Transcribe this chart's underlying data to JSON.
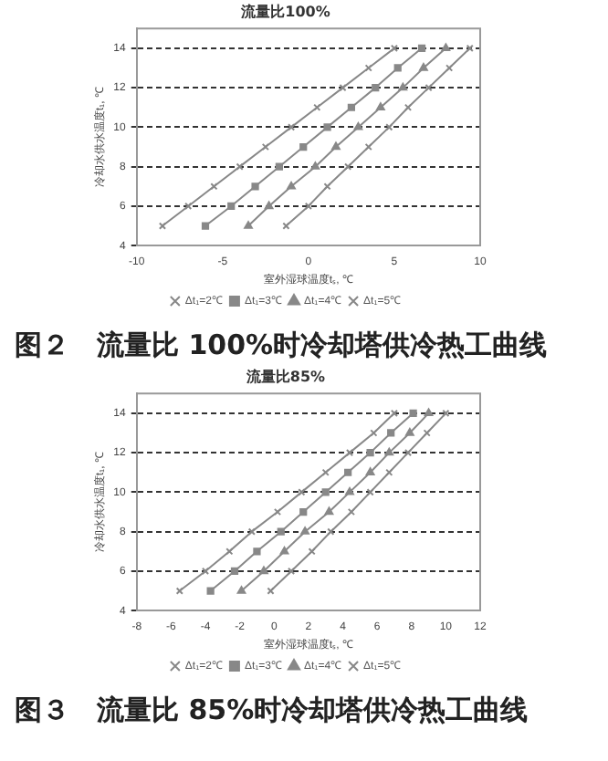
{
  "chart_data": [
    {
      "type": "line",
      "title": "流量比100%",
      "xlabel": "室外湿球温度tₛ, ℃",
      "ylabel": "冷却水供水温度t₁, ℃",
      "annotations": [
        "图２　流量比 100%时冷却塔供冷热工曲线"
      ],
      "xlim": [
        -10,
        10
      ],
      "xticks": [
        -10,
        -5,
        0,
        5,
        10
      ],
      "ylim": [
        4,
        15
      ],
      "yticks": [
        4,
        6,
        8,
        10,
        12,
        14
      ],
      "grid": "y",
      "legend": "bottom",
      "line_style": "solid",
      "series": [
        {
          "name": "Δt₁=2℃",
          "color": "#888888",
          "marker": "cross",
          "x": [
            -8.5,
            -7,
            -5.5,
            -4,
            -2.5,
            -1,
            0.5,
            2,
            3.5,
            5
          ],
          "values": [
            5,
            6,
            7,
            8,
            9,
            10,
            11,
            12,
            13,
            14
          ]
        },
        {
          "name": "Δt₁=3℃",
          "color": "#888888",
          "marker": "square",
          "x": [
            -6,
            -4.5,
            -3.1,
            -1.7,
            -0.3,
            1.1,
            2.5,
            3.9,
            5.2,
            6.6
          ],
          "values": [
            5,
            6,
            7,
            8,
            9,
            10,
            11,
            12,
            13,
            14
          ]
        },
        {
          "name": "Δt₁=4℃",
          "color": "#888888",
          "marker": "triangle",
          "x": [
            -3.5,
            -2.3,
            -1,
            0.4,
            1.6,
            2.9,
            4.2,
            5.5,
            6.7,
            8
          ],
          "values": [
            5,
            6,
            7,
            8,
            9,
            10,
            11,
            12,
            13,
            14
          ]
        },
        {
          "name": "Δt₁=5℃",
          "color": "#888888",
          "marker": "cross",
          "x": [
            -1.3,
            0,
            1.1,
            2.3,
            3.5,
            4.7,
            5.8,
            7,
            8.2,
            9.4
          ],
          "values": [
            5,
            6,
            7,
            8,
            9,
            10,
            11,
            12,
            13,
            14
          ]
        }
      ]
    },
    {
      "type": "line",
      "title": "流量比85%",
      "xlabel": "室外湿球温度tₛ, ℃",
      "ylabel": "冷却水供水温度t₁, ℃",
      "annotations": [
        "图３　流量比 85%时冷却塔供冷热工曲线"
      ],
      "xlim": [
        -8,
        12
      ],
      "xticks": [
        -8,
        -6,
        -4,
        -2,
        0,
        2,
        4,
        6,
        8,
        10,
        12
      ],
      "ylim": [
        4,
        15
      ],
      "yticks": [
        4,
        6,
        8,
        10,
        12,
        14
      ],
      "grid": "y",
      "legend": "bottom",
      "line_style": "solid",
      "series": [
        {
          "name": "Δt₁=2℃",
          "color": "#888888",
          "marker": "cross",
          "x": [
            -5.5,
            -4,
            -2.6,
            -1.3,
            0.2,
            1.6,
            3,
            4.4,
            5.8,
            7
          ],
          "values": [
            5,
            6,
            7,
            8,
            9,
            10,
            11,
            12,
            13,
            14
          ]
        },
        {
          "name": "Δt₁=3℃",
          "color": "#888888",
          "marker": "square",
          "x": [
            -3.7,
            -2.3,
            -1,
            0.4,
            1.7,
            3,
            4.3,
            5.6,
            6.8,
            8.1
          ],
          "values": [
            5,
            6,
            7,
            8,
            9,
            10,
            11,
            12,
            13,
            14
          ]
        },
        {
          "name": "Δt₁=4℃",
          "color": "#888888",
          "marker": "triangle",
          "x": [
            -1.9,
            -0.6,
            0.6,
            1.8,
            3.2,
            4.4,
            5.6,
            6.7,
            7.9,
            9
          ],
          "values": [
            5,
            6,
            7,
            8,
            9,
            10,
            11,
            12,
            13,
            14
          ]
        },
        {
          "name": "Δt₁=5℃",
          "color": "#888888",
          "marker": "cross",
          "x": [
            -0.2,
            1,
            2.2,
            3.3,
            4.5,
            5.6,
            6.7,
            7.8,
            8.9,
            10
          ],
          "values": [
            5,
            6,
            7,
            8,
            9,
            10,
            11,
            12,
            13,
            14
          ]
        }
      ]
    }
  ]
}
